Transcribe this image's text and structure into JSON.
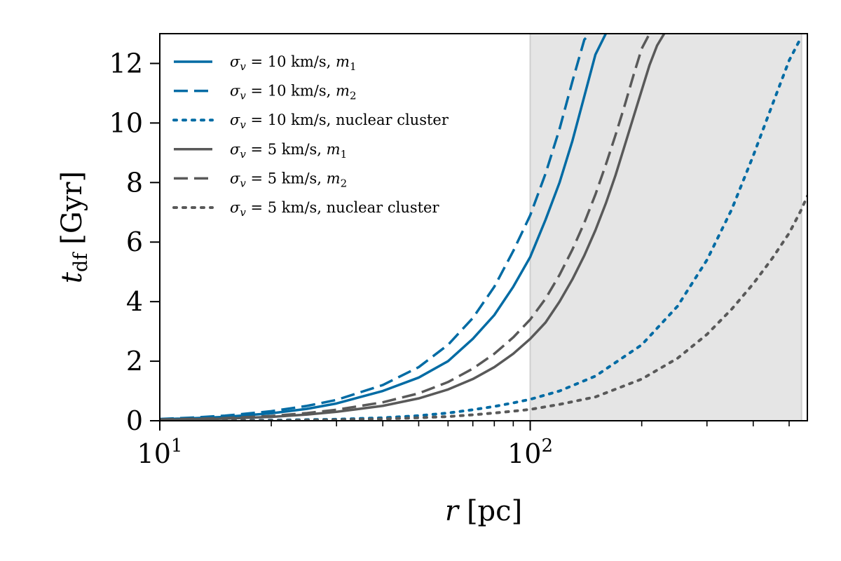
{
  "chart_data": {
    "type": "line",
    "title": "",
    "xlabel": {
      "symbol": "r",
      "unit": "[pc]"
    },
    "ylabel": {
      "symbol": "t",
      "subscript": "df",
      "unit": "[Gyr]"
    },
    "xscale": "log",
    "xlim": [
      10,
      560
    ],
    "ylim": [
      0,
      13
    ],
    "x_ticks": [
      {
        "value": 10,
        "base": "10",
        "exp": "1"
      },
      {
        "value": 100,
        "base": "10",
        "exp": "2"
      }
    ],
    "y_ticks": [
      "0",
      "2",
      "4",
      "6",
      "8",
      "10",
      "12"
    ],
    "grid": false,
    "legend_position": "top-left",
    "shaded_region": {
      "x_start": 100,
      "x_end": 540,
      "color": "#e5e5e5"
    },
    "series": [
      {
        "name": "σv = 10 km/s, m1",
        "label_parts": {
          "pre": "σ",
          "sub1": "v",
          "mid": " = 10 km/s, ",
          "italic": "m",
          "sub2": "1"
        },
        "color": "#006ba4",
        "dash": "solid",
        "x": [
          10,
          12,
          15,
          20,
          25,
          30,
          40,
          50,
          60,
          70,
          80,
          90,
          100,
          110,
          120,
          130,
          140,
          150,
          160
        ],
        "y": [
          0.05,
          0.08,
          0.13,
          0.25,
          0.4,
          0.58,
          1.0,
          1.45,
          2.0,
          2.75,
          3.55,
          4.5,
          5.5,
          6.75,
          8.0,
          9.4,
          10.9,
          12.3,
          13.0
        ]
      },
      {
        "name": "σv = 10 km/s, m2",
        "label_parts": {
          "pre": "σ",
          "sub1": "v",
          "mid": " = 10 km/s, ",
          "italic": "m",
          "sub2": "2"
        },
        "color": "#006ba4",
        "dash": "dashed",
        "x": [
          10,
          12,
          15,
          20,
          25,
          30,
          40,
          50,
          60,
          70,
          80,
          90,
          100,
          110,
          120,
          130,
          140,
          145
        ],
        "y": [
          0.06,
          0.1,
          0.17,
          0.32,
          0.5,
          0.7,
          1.2,
          1.8,
          2.55,
          3.45,
          4.5,
          5.7,
          6.9,
          8.3,
          9.8,
          11.4,
          12.8,
          13.0
        ]
      },
      {
        "name": "σv = 10 km/s, nuclear cluster",
        "label_parts": {
          "pre": "σ",
          "sub1": "v",
          "mid": " = 10 km/s, nuclear cluster",
          "italic": "",
          "sub2": ""
        },
        "color": "#006ba4",
        "dash": "dotted",
        "x": [
          10,
          20,
          30,
          40,
          50,
          60,
          70,
          80,
          90,
          100,
          120,
          150,
          200,
          250,
          300,
          350,
          400,
          450,
          500,
          540
        ],
        "y": [
          0.0,
          0.02,
          0.05,
          0.1,
          0.17,
          0.26,
          0.37,
          0.48,
          0.6,
          0.72,
          1.0,
          1.5,
          2.55,
          3.85,
          5.4,
          7.1,
          8.9,
          10.6,
          12.1,
          12.9
        ]
      },
      {
        "name": "σv = 5 km/s, m1",
        "label_parts": {
          "pre": "σ",
          "sub1": "v",
          "mid": " = 5 km/s, ",
          "italic": "m",
          "sub2": "1"
        },
        "color": "#595959",
        "dash": "solid",
        "x": [
          10,
          15,
          20,
          25,
          30,
          40,
          50,
          60,
          70,
          80,
          90,
          100,
          110,
          120,
          130,
          140,
          150,
          160,
          170,
          180,
          190,
          200,
          210,
          220,
          230
        ],
        "y": [
          0.03,
          0.07,
          0.13,
          0.21,
          0.3,
          0.5,
          0.75,
          1.05,
          1.4,
          1.8,
          2.25,
          2.75,
          3.3,
          4.0,
          4.75,
          5.55,
          6.4,
          7.3,
          8.25,
          9.25,
          10.2,
          11.1,
          11.95,
          12.6,
          13.0
        ]
      },
      {
        "name": "σv = 5 km/s, m2",
        "label_parts": {
          "pre": "σ",
          "sub1": "v",
          "mid": " = 5 km/s, ",
          "italic": "m",
          "sub2": "2"
        },
        "color": "#595959",
        "dash": "dashed",
        "x": [
          10,
          15,
          20,
          25,
          30,
          40,
          50,
          60,
          70,
          80,
          90,
          100,
          110,
          120,
          130,
          140,
          150,
          160,
          170,
          180,
          190,
          200,
          210
        ],
        "y": [
          0.04,
          0.09,
          0.16,
          0.26,
          0.37,
          0.62,
          0.92,
          1.3,
          1.75,
          2.25,
          2.8,
          3.4,
          4.1,
          4.9,
          5.75,
          6.65,
          7.6,
          8.6,
          9.6,
          10.6,
          11.6,
          12.5,
          13.0
        ]
      },
      {
        "name": "σv = 5 km/s, nuclear cluster",
        "label_parts": {
          "pre": "σ",
          "sub1": "v",
          "mid": " = 5 km/s, nuclear cluster",
          "italic": "",
          "sub2": ""
        },
        "color": "#595959",
        "dash": "dotted",
        "x": [
          10,
          20,
          30,
          40,
          50,
          60,
          70,
          80,
          90,
          100,
          120,
          150,
          200,
          250,
          300,
          350,
          400,
          450,
          500,
          540,
          560
        ],
        "y": [
          0.0,
          0.01,
          0.03,
          0.06,
          0.1,
          0.14,
          0.2,
          0.26,
          0.32,
          0.38,
          0.55,
          0.8,
          1.4,
          2.1,
          2.9,
          3.75,
          4.6,
          5.45,
          6.3,
          7.1,
          7.55
        ]
      }
    ]
  }
}
